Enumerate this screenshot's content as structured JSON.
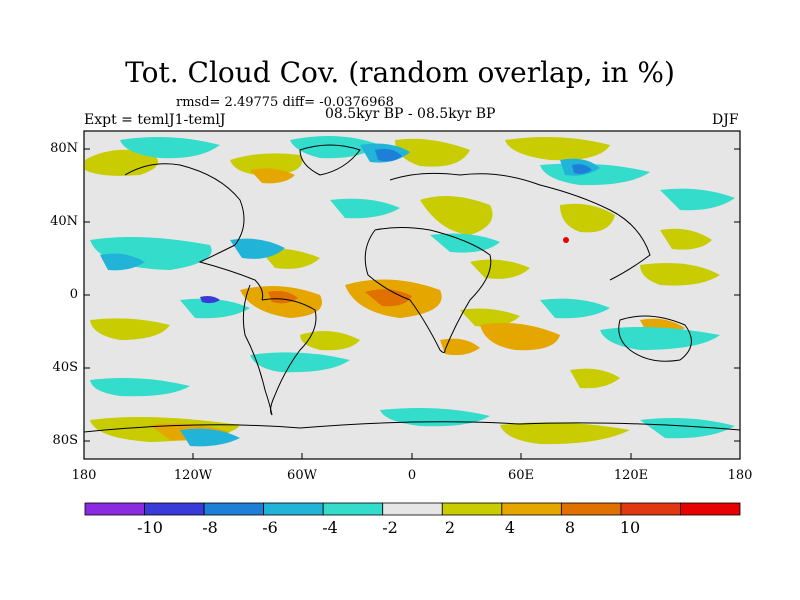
{
  "title": "Tot. Cloud Cov. (random overlap, in %)",
  "stats": "rmsd= 2.49775 diff= -0.0376968",
  "experiment": "Expt = temlJ1-temlJ",
  "period": "08.5kyr BP - 08.5kyr BP",
  "season": "DJF",
  "y_ticks": [
    "80N",
    "40N",
    "0",
    "40S",
    "80S"
  ],
  "x_ticks": [
    "180",
    "120W",
    "60W",
    "0",
    "60E",
    "120E",
    "180"
  ],
  "colorbar": {
    "labels": [
      "-10",
      "-8",
      "-6",
      "-4",
      "-2",
      "2",
      "4",
      "8",
      "10"
    ],
    "colors": [
      "#8a2be2",
      "#3a3ad8",
      "#1e7fd8",
      "#22b4d8",
      "#33dccb",
      "#e6e6e6",
      "#c8cc00",
      "#e6a600",
      "#e07000",
      "#e03810",
      "#e60000"
    ]
  },
  "map_colors": {
    "background": "#e6e6e6",
    "coast": "#000000"
  }
}
